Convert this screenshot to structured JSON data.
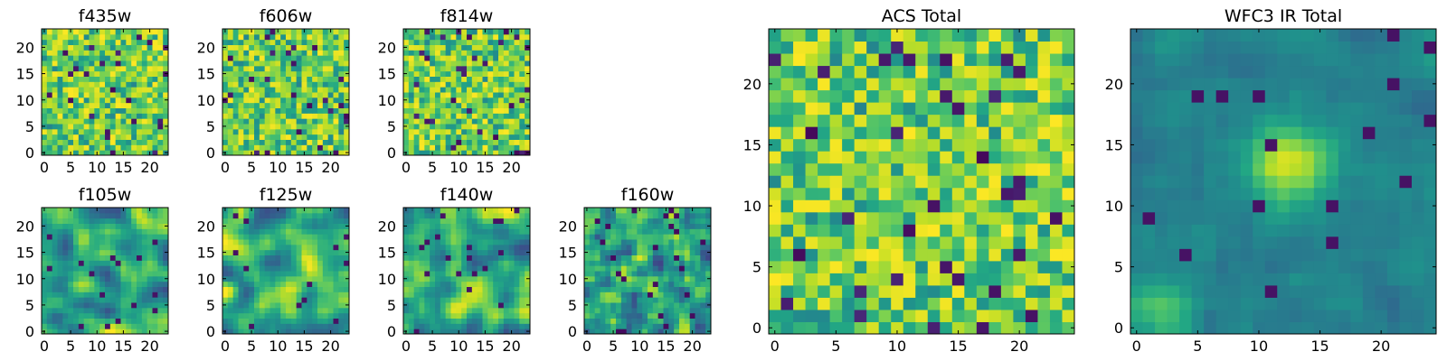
{
  "figure": {
    "description_free": true
  },
  "chart_data": [
    {
      "type": "heatmap",
      "title": "f435w",
      "grid": false,
      "colormap": "viridis",
      "n": 24,
      "xlim": [
        0,
        24
      ],
      "ylim": [
        0,
        24
      ],
      "xticks": [
        0,
        5,
        10,
        15,
        20
      ],
      "yticks": [
        0,
        5,
        10,
        15,
        20
      ],
      "seed": 11,
      "smooth": 0,
      "style": "noise-high"
    },
    {
      "type": "heatmap",
      "title": "f606w",
      "grid": false,
      "colormap": "viridis",
      "n": 24,
      "xlim": [
        0,
        24
      ],
      "ylim": [
        0,
        24
      ],
      "xticks": [
        0,
        5,
        10,
        15,
        20
      ],
      "yticks": [
        0,
        5,
        10,
        15,
        20
      ],
      "seed": 23,
      "smooth": 0,
      "style": "noise-high"
    },
    {
      "type": "heatmap",
      "title": "f814w",
      "grid": false,
      "colormap": "viridis",
      "n": 24,
      "xlim": [
        0,
        24
      ],
      "ylim": [
        0,
        24
      ],
      "xticks": [
        0,
        5,
        10,
        15,
        20
      ],
      "yticks": [
        0,
        5,
        10,
        15,
        20
      ],
      "seed": 37,
      "smooth": 0,
      "style": "noise-high"
    },
    {
      "type": "heatmap",
      "title": "f105w",
      "grid": false,
      "colormap": "viridis",
      "n": 24,
      "xlim": [
        0,
        24
      ],
      "ylim": [
        0,
        24
      ],
      "xticks": [
        0,
        5,
        10,
        15,
        20
      ],
      "yticks": [
        0,
        5,
        10,
        15,
        20
      ],
      "seed": 41,
      "smooth": 2,
      "style": "blobby"
    },
    {
      "type": "heatmap",
      "title": "f125w",
      "grid": false,
      "colormap": "viridis",
      "n": 24,
      "xlim": [
        0,
        24
      ],
      "ylim": [
        0,
        24
      ],
      "xticks": [
        0,
        5,
        10,
        15,
        20
      ],
      "yticks": [
        0,
        5,
        10,
        15,
        20
      ],
      "seed": 53,
      "smooth": 2,
      "style": "blobby"
    },
    {
      "type": "heatmap",
      "title": "f140w",
      "grid": false,
      "colormap": "viridis",
      "n": 24,
      "xlim": [
        0,
        24
      ],
      "ylim": [
        0,
        24
      ],
      "xticks": [
        0,
        5,
        10,
        15,
        20
      ],
      "yticks": [
        0,
        5,
        10,
        15,
        20
      ],
      "seed": 67,
      "smooth": 2,
      "style": "blobby"
    },
    {
      "type": "heatmap",
      "title": "f160w",
      "grid": false,
      "colormap": "viridis",
      "n": 24,
      "xlim": [
        0,
        24
      ],
      "ylim": [
        0,
        24
      ],
      "xticks": [
        0,
        5,
        10,
        15,
        20
      ],
      "yticks": [
        0,
        5,
        10,
        15,
        20
      ],
      "seed": 79,
      "smooth": 1,
      "style": "blobby-mid"
    },
    {
      "type": "heatmap",
      "title": "ACS Total",
      "grid": false,
      "colormap": "viridis",
      "n": 25,
      "xlim": [
        0,
        25
      ],
      "ylim": [
        0,
        25
      ],
      "xticks": [
        0,
        5,
        10,
        15,
        20
      ],
      "yticks": [
        0,
        5,
        10,
        15,
        20
      ],
      "seed": 97,
      "smooth": 0,
      "style": "noise-high"
    },
    {
      "type": "heatmap",
      "title": "WFC3 IR Total",
      "grid": false,
      "colormap": "viridis",
      "n": 25,
      "xlim": [
        0,
        25
      ],
      "ylim": [
        0,
        25
      ],
      "xticks": [
        0,
        5,
        10,
        15,
        20
      ],
      "yticks": [
        0,
        5,
        10,
        15,
        20
      ],
      "seed": 113,
      "smooth": 1,
      "style": "source-center"
    }
  ]
}
